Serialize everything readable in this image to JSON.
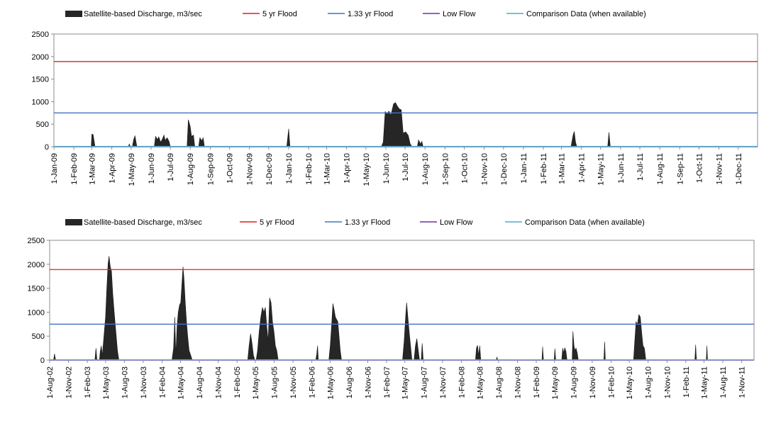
{
  "chart_data": [
    {
      "type": "area",
      "ylim": [
        0,
        2500
      ],
      "yticks": [
        0,
        500,
        1000,
        1500,
        2000,
        2500
      ],
      "grid": false,
      "legend_position": "top",
      "legend": [
        {
          "label": "Satellite-based Discharge, m3/sec",
          "kind": "area",
          "color": "#262626"
        },
        {
          "label": "5 yr Flood",
          "kind": "line",
          "color": "#e21f1f"
        },
        {
          "label": "1.33 yr Flood",
          "kind": "line",
          "color": "#4472c4"
        },
        {
          "label": "Low Flow",
          "kind": "line",
          "color": "#7030a0"
        },
        {
          "label": "Comparison Data (when available)",
          "kind": "line",
          "color": "#4bacc6"
        }
      ],
      "x_start": "2009-01-01",
      "x_end": "2011-12-31",
      "x_tick_labels": [
        "1-Jan-09",
        "1-Feb-09",
        "1-Mar-09",
        "1-Apr-09",
        "1-May-09",
        "1-Jun-09",
        "1-Jul-09",
        "1-Aug-09",
        "1-Sep-09",
        "1-Oct-09",
        "1-Nov-09",
        "1-Dec-09",
        "1-Jan-10",
        "1-Feb-10",
        "1-Mar-10",
        "1-Apr-10",
        "1-May-10",
        "1-Jun-10",
        "1-Jul-10",
        "1-Aug-10",
        "1-Sep-10",
        "1-Oct-10",
        "1-Nov-10",
        "1-Dec-10",
        "1-Jan-11",
        "1-Feb-11",
        "1-Mar-11",
        "1-Apr-11",
        "1-May-11",
        "1-Jun-11",
        "1-Jul-11",
        "1-Aug-11",
        "1-Sep-11",
        "1-Oct-11",
        "1-Nov-11",
        "1-Dec-11"
      ],
      "thresholds": {
        "flood_5yr": 1890,
        "flood_1_33yr": 750,
        "low_flow": 0
      },
      "series": [
        {
          "name": "Satellite-based Discharge, m3/sec",
          "points": [
            [
              "2009-01-01",
              0
            ],
            [
              "2009-02-28",
              0
            ],
            [
              "2009-03-01",
              280
            ],
            [
              "2009-03-03",
              270
            ],
            [
              "2009-03-06",
              0
            ],
            [
              "2009-04-27",
              0
            ],
            [
              "2009-04-28",
              60
            ],
            [
              "2009-04-30",
              0
            ],
            [
              "2009-05-03",
              0
            ],
            [
              "2009-05-05",
              160
            ],
            [
              "2009-05-07",
              240
            ],
            [
              "2009-05-10",
              0
            ],
            [
              "2009-06-06",
              0
            ],
            [
              "2009-06-08",
              230
            ],
            [
              "2009-06-11",
              160
            ],
            [
              "2009-06-13",
              220
            ],
            [
              "2009-06-16",
              100
            ],
            [
              "2009-06-19",
              180
            ],
            [
              "2009-06-21",
              260
            ],
            [
              "2009-06-23",
              140
            ],
            [
              "2009-06-26",
              200
            ],
            [
              "2009-06-29",
              120
            ],
            [
              "2009-07-01",
              0
            ],
            [
              "2009-07-27",
              0
            ],
            [
              "2009-07-29",
              600
            ],
            [
              "2009-08-01",
              450
            ],
            [
              "2009-08-03",
              230
            ],
            [
              "2009-08-06",
              260
            ],
            [
              "2009-08-08",
              0
            ],
            [
              "2009-08-14",
              0
            ],
            [
              "2009-08-16",
              200
            ],
            [
              "2009-08-19",
              130
            ],
            [
              "2009-08-21",
              200
            ],
            [
              "2009-08-23",
              0
            ],
            [
              "2009-12-29",
              0
            ],
            [
              "2010-01-01",
              400
            ],
            [
              "2010-01-03",
              0
            ],
            [
              "2010-05-25",
              0
            ],
            [
              "2010-05-28",
              100
            ],
            [
              "2010-05-31",
              780
            ],
            [
              "2010-06-03",
              740
            ],
            [
              "2010-06-06",
              790
            ],
            [
              "2010-06-09",
              700
            ],
            [
              "2010-06-13",
              950
            ],
            [
              "2010-06-16",
              980
            ],
            [
              "2010-06-19",
              900
            ],
            [
              "2010-06-22",
              840
            ],
            [
              "2010-06-25",
              820
            ],
            [
              "2010-06-28",
              300
            ],
            [
              "2010-07-02",
              330
            ],
            [
              "2010-07-06",
              250
            ],
            [
              "2010-07-09",
              60
            ],
            [
              "2010-07-12",
              0
            ],
            [
              "2010-07-20",
              0
            ],
            [
              "2010-07-22",
              150
            ],
            [
              "2010-07-25",
              60
            ],
            [
              "2010-07-27",
              120
            ],
            [
              "2010-07-29",
              0
            ],
            [
              "2011-03-16",
              0
            ],
            [
              "2011-03-19",
              250
            ],
            [
              "2011-03-21",
              340
            ],
            [
              "2011-03-23",
              100
            ],
            [
              "2011-03-25",
              0
            ],
            [
              "2011-05-12",
              0
            ],
            [
              "2011-05-14",
              320
            ],
            [
              "2011-05-16",
              0
            ],
            [
              "2011-12-31",
              0
            ]
          ]
        },
        {
          "name": "Comparison Data (when available)",
          "points": []
        }
      ]
    },
    {
      "type": "area",
      "ylim": [
        0,
        2500
      ],
      "yticks": [
        0,
        500,
        1000,
        1500,
        2000,
        2500
      ],
      "grid": false,
      "legend_position": "top",
      "legend": [
        {
          "label": "Satellite-based Discharge, m3/sec",
          "kind": "area",
          "color": "#262626"
        },
        {
          "label": "5 yr Flood",
          "kind": "line",
          "color": "#e21f1f"
        },
        {
          "label": "1.33 yr Flood",
          "kind": "line",
          "color": "#4472c4"
        },
        {
          "label": "Low Flow",
          "kind": "line",
          "color": "#7030a0"
        },
        {
          "label": "Comparison Data (when available)",
          "kind": "line",
          "color": "#4bacc6"
        }
      ],
      "x_start": "2002-08-01",
      "x_end": "2011-12-31",
      "x_tick_labels": [
        "1-Aug-02",
        "1-Nov-02",
        "1-Feb-03",
        "1-May-03",
        "1-Aug-03",
        "1-Nov-03",
        "1-Feb-04",
        "1-May-04",
        "1-Aug-04",
        "1-Nov-04",
        "1-Feb-05",
        "1-May-05",
        "1-Aug-05",
        "1-Nov-05",
        "1-Feb-06",
        "1-May-06",
        "1-Aug-06",
        "1-Nov-06",
        "1-Feb-07",
        "1-May-07",
        "1-Aug-07",
        "1-Nov-07",
        "1-Feb-08",
        "1-May-08",
        "1-Aug-08",
        "1-Nov-08",
        "1-Feb-09",
        "1-May-09",
        "1-Aug-09",
        "1-Nov-09",
        "1-Feb-10",
        "1-May-10",
        "1-Aug-10",
        "1-Nov-10",
        "1-Feb-11",
        "1-May-11",
        "1-Aug-11",
        "1-Nov-11"
      ],
      "thresholds": {
        "flood_5yr": 1890,
        "flood_1_33yr": 750,
        "low_flow": 0
      },
      "series": [
        {
          "name": "Satellite-based Discharge, m3/sec",
          "points": [
            [
              "2002-08-01",
              0
            ],
            [
              "2002-08-20",
              0
            ],
            [
              "2002-08-25",
              130
            ],
            [
              "2002-08-30",
              0
            ],
            [
              "2003-03-10",
              0
            ],
            [
              "2003-03-15",
              250
            ],
            [
              "2003-03-20",
              0
            ],
            [
              "2003-04-01",
              0
            ],
            [
              "2003-04-05",
              180
            ],
            [
              "2003-04-10",
              300
            ],
            [
              "2003-04-15",
              100
            ],
            [
              "2003-04-20",
              350
            ],
            [
              "2003-04-25",
              600
            ],
            [
              "2003-05-01",
              900
            ],
            [
              "2003-05-07",
              1500
            ],
            [
              "2003-05-13",
              2000
            ],
            [
              "2003-05-18",
              2170
            ],
            [
              "2003-05-24",
              1950
            ],
            [
              "2003-05-30",
              1850
            ],
            [
              "2003-06-05",
              1400
            ],
            [
              "2003-06-12",
              1000
            ],
            [
              "2003-06-20",
              600
            ],
            [
              "2003-06-28",
              200
            ],
            [
              "2003-07-05",
              0
            ],
            [
              "2004-03-20",
              0
            ],
            [
              "2004-03-28",
              250
            ],
            [
              "2004-04-03",
              900
            ],
            [
              "2004-04-08",
              100
            ],
            [
              "2004-04-14",
              700
            ],
            [
              "2004-04-20",
              1000
            ],
            [
              "2004-04-26",
              1150
            ],
            [
              "2004-05-02",
              1200
            ],
            [
              "2004-05-08",
              1600
            ],
            [
              "2004-05-13",
              1950
            ],
            [
              "2004-05-18",
              1700
            ],
            [
              "2004-05-24",
              1200
            ],
            [
              "2004-05-30",
              800
            ],
            [
              "2004-06-05",
              500
            ],
            [
              "2004-06-12",
              200
            ],
            [
              "2004-06-20",
              100
            ],
            [
              "2004-06-27",
              0
            ],
            [
              "2005-03-25",
              0
            ],
            [
              "2005-04-01",
              300
            ],
            [
              "2005-04-08",
              550
            ],
            [
              "2005-04-15",
              350
            ],
            [
              "2005-04-22",
              100
            ],
            [
              "2005-04-29",
              0
            ],
            [
              "2005-05-05",
              0
            ],
            [
              "2005-05-12",
              200
            ],
            [
              "2005-05-20",
              600
            ],
            [
              "2005-05-28",
              900
            ],
            [
              "2005-06-05",
              1100
            ],
            [
              "2005-06-12",
              1000
            ],
            [
              "2005-06-19",
              1100
            ],
            [
              "2005-06-26",
              700
            ],
            [
              "2005-07-03",
              400
            ],
            [
              "2005-07-10",
              1300
            ],
            [
              "2005-07-17",
              1200
            ],
            [
              "2005-07-24",
              800
            ],
            [
              "2005-07-31",
              600
            ],
            [
              "2005-08-07",
              300
            ],
            [
              "2005-08-14",
              200
            ],
            [
              "2005-08-21",
              0
            ],
            [
              "2006-02-20",
              0
            ],
            [
              "2006-02-25",
              120
            ],
            [
              "2006-03-01",
              300
            ],
            [
              "2006-03-05",
              0
            ],
            [
              "2006-04-25",
              0
            ],
            [
              "2006-05-02",
              300
            ],
            [
              "2006-05-09",
              750
            ],
            [
              "2006-05-15",
              1180
            ],
            [
              "2006-05-21",
              1050
            ],
            [
              "2006-05-27",
              900
            ],
            [
              "2006-06-02",
              850
            ],
            [
              "2006-06-08",
              800
            ],
            [
              "2006-06-14",
              500
            ],
            [
              "2006-06-20",
              200
            ],
            [
              "2006-06-26",
              0
            ],
            [
              "2007-04-20",
              0
            ],
            [
              "2007-04-28",
              400
            ],
            [
              "2007-05-05",
              900
            ],
            [
              "2007-05-10",
              1200
            ],
            [
              "2007-05-16",
              900
            ],
            [
              "2007-05-22",
              600
            ],
            [
              "2007-05-29",
              300
            ],
            [
              "2007-06-05",
              0
            ],
            [
              "2007-06-15",
              0
            ],
            [
              "2007-06-22",
              300
            ],
            [
              "2007-06-29",
              450
            ],
            [
              "2007-07-06",
              200
            ],
            [
              "2007-07-12",
              0
            ],
            [
              "2007-07-20",
              0
            ],
            [
              "2007-07-25",
              350
            ],
            [
              "2007-07-30",
              0
            ],
            [
              "2008-04-10",
              0
            ],
            [
              "2008-04-15",
              250
            ],
            [
              "2008-04-20",
              310
            ],
            [
              "2008-04-25",
              100
            ],
            [
              "2008-05-01",
              300
            ],
            [
              "2008-05-06",
              0
            ],
            [
              "2008-07-20",
              0
            ],
            [
              "2008-07-24",
              60
            ],
            [
              "2008-07-28",
              0
            ],
            [
              "2009-03-01",
              0
            ],
            [
              "2009-03-04",
              280
            ],
            [
              "2009-03-08",
              0
            ],
            [
              "2009-04-29",
              0
            ],
            [
              "2009-05-03",
              240
            ],
            [
              "2009-05-07",
              0
            ],
            [
              "2009-06-05",
              0
            ],
            [
              "2009-06-10",
              250
            ],
            [
              "2009-06-15",
              150
            ],
            [
              "2009-06-20",
              260
            ],
            [
              "2009-06-26",
              180
            ],
            [
              "2009-07-01",
              0
            ],
            [
              "2009-07-26",
              0
            ],
            [
              "2009-07-30",
              600
            ],
            [
              "2009-08-04",
              300
            ],
            [
              "2009-08-09",
              200
            ],
            [
              "2009-08-14",
              250
            ],
            [
              "2009-08-20",
              150
            ],
            [
              "2009-08-25",
              0
            ],
            [
              "2009-12-28",
              0
            ],
            [
              "2010-01-01",
              380
            ],
            [
              "2010-01-04",
              0
            ],
            [
              "2010-05-22",
              0
            ],
            [
              "2010-05-28",
              400
            ],
            [
              "2010-06-03",
              800
            ],
            [
              "2010-06-10",
              750
            ],
            [
              "2010-06-17",
              950
            ],
            [
              "2010-06-24",
              900
            ],
            [
              "2010-07-01",
              550
            ],
            [
              "2010-07-07",
              300
            ],
            [
              "2010-07-14",
              250
            ],
            [
              "2010-07-21",
              0
            ],
            [
              "2011-03-17",
              0
            ],
            [
              "2011-03-21",
              320
            ],
            [
              "2011-03-25",
              0
            ],
            [
              "2011-05-12",
              0
            ],
            [
              "2011-05-15",
              300
            ],
            [
              "2011-05-18",
              0
            ],
            [
              "2011-12-31",
              0
            ]
          ]
        },
        {
          "name": "Comparison Data (when available)",
          "points": []
        }
      ]
    }
  ]
}
